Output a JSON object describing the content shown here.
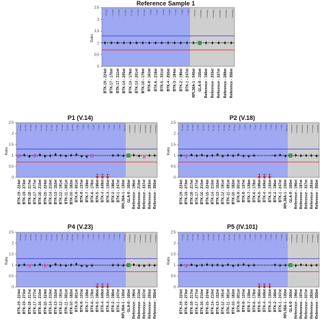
{
  "figure": {
    "y_axis_label": "Ratio",
    "y_ticks": [
      "2.5",
      "2",
      "1.5",
      "1",
      "0.5",
      "0"
    ]
  },
  "colors": {
    "blue_region": "#9fa8f2",
    "gray_region": "#cfcfcf",
    "baseline": "#111111",
    "upper_threshold": "#2b2bd9",
    "lower_threshold": "#e02020",
    "pink_marker": "#d84fc8",
    "green_marker": "#3aa04a",
    "red_marker": "#e02020"
  },
  "chart_data": [
    {
      "type": "scatter",
      "title": "Reference Sample 1",
      "ylabel": "Ratio",
      "ylim": [
        0,
        2.5
      ],
      "thresholds": {
        "upper": 1.3,
        "lower": 0.7
      },
      "categories": [
        "BTK-19 - 224nt",
        "BTK-17 - 170nt",
        "BTK-17 - 211nt",
        "BTK-14 - 205nt",
        "BTK-13 - 179nt",
        "BTK-13 - 201nt",
        "BTK-10 - 179nt",
        "BTK-8 - 161nt",
        "BTK-6 - 218nt",
        "BTK-5 - 331nt",
        "BTK-4 - 250nt",
        "BTK-3 - 184nt",
        "BTK-2 - 196nt",
        "BTK-1 - 247nt",
        "RPL36A-1 - 340nt",
        "GLA-8 - 155nt",
        "Reference - 196nt",
        "Reference - 203nt",
        "Reference - 337nt",
        "Reference - 288nt",
        "Reference - 356nt"
      ],
      "values": [
        1.0,
        1.0,
        1.0,
        1.0,
        1.0,
        1.0,
        1.0,
        1.0,
        1.0,
        1.0,
        1.0,
        1.0,
        1.0,
        1.0,
        1.0,
        1.0,
        1.0,
        1.0,
        1.0,
        1.0,
        1.0
      ],
      "blue_region_count": 14,
      "region_labels": [
        "BTK 19 ...",
        "BTK 17 ...",
        "BTK 17 ...",
        "BTK 14 ...",
        "BTK 13 ...",
        "BTK 13 ...",
        "BTK 10 ...",
        "BTK 8 ...",
        "BTK 6 ...",
        "BTK 5 ...",
        "BTK 4 ...",
        "BTK 3 ...",
        "BTK 2 ...",
        "BTK 1 ...",
        "RPL36A ...",
        "Reference ...",
        "Reference ...",
        "Reference ...",
        "Reference ...",
        "Reference ...",
        "Reference ..."
      ],
      "marker_kinds": [
        "",
        "",
        "",
        "",
        "",
        "",
        "",
        "",
        "",
        "",
        "",
        "",
        "",
        "",
        "",
        "green",
        "",
        "",
        "",
        "",
        ""
      ],
      "red_markers": []
    },
    {
      "type": "scatter",
      "title": "P1 (V.14)",
      "ylabel": "Ratio",
      "ylim": [
        0,
        2.5
      ],
      "thresholds": {
        "upper": 1.3,
        "lower": 0.7
      },
      "categories": [
        "BTK-19 - 224nt",
        "BTK-19 - 273nt",
        "BTK-18 - 217nt",
        "BTK-17 - 277nt",
        "BTK-16 - 210nt",
        "BTK-15 - 224nt",
        "BTK-14 - 210nt",
        "BTK-13 - 152nt",
        "BTK-12 - 191nt",
        "BTK-11 - 381nt",
        "BTK-10 - 182nt",
        "BTK-9 - 301nt",
        "BTK-8 - 137nt",
        "BTK-7 - 139nt",
        "BTK-6 - 178nt",
        "BTK-5 - 196nt",
        "BTK-4 - 349nt",
        "BTK-3 - 130nt",
        "BTK-2 - 196nt",
        "BTK-1 - 247nt",
        "RPL36A-1 - 130nt",
        "GLA-8 - 160nt",
        "Reference - 196nt",
        "Reference - 210nt",
        "Reference - 337nt",
        "Reference - 283nt",
        "Reference - 356nt"
      ],
      "values": [
        0.98,
        1.02,
        0.96,
        1.0,
        1.03,
        0.97,
        0.99,
        1.05,
        1.0,
        0.98,
        1.01,
        1.04,
        0.97,
        0.95,
        0.98,
        0.0,
        0.0,
        0.0,
        1.0,
        1.01,
        0.99,
        1.0,
        1.02,
        0.98,
        0.95,
        1.0,
        1.0
      ],
      "blue_region_count": 21,
      "region_labels": [
        "BTK 19 ...",
        "BTK 19 ...",
        "BTK 18 ...",
        "BTK 17 ...",
        "BTK 16 ...",
        "BTK 15 ...",
        "BTK 14 ...",
        "BTK 13 ...",
        "BTK 12 ...",
        "BTK 11 ...",
        "BTK 10 ...",
        "BTK 9 ...",
        "BTK 8 ...",
        "BTK 7 ...",
        "BTK 6 ...",
        "BTK 5 ...",
        "BTK 4 ...",
        "BTK 3 ...",
        "BTK 2 ...",
        "BTK 1 ...",
        "RPL36A ...",
        "Reference ...",
        "Reference ...",
        "Reference ...",
        "Reference ...",
        "Reference ...",
        "Reference ..."
      ],
      "marker_kinds": [
        "pink",
        "",
        "",
        "pink",
        "",
        "",
        "",
        "",
        "",
        "",
        "",
        "",
        "",
        "",
        "pink",
        "",
        "",
        "",
        "",
        "",
        "",
        "green",
        "",
        "",
        "pink",
        "",
        ""
      ],
      "red_markers": [
        15,
        16,
        17
      ]
    },
    {
      "type": "scatter",
      "title": "P2 (V.18)",
      "ylabel": "Ratio",
      "ylim": [
        0,
        2.5
      ],
      "thresholds": {
        "upper": 1.3,
        "lower": 0.7
      },
      "categories": [
        "BTK-19 - 224nt",
        "BTK-19 - 273nt",
        "BTK-18 - 217nt",
        "BTK-17 - 277nt",
        "BTK-16 - 210nt",
        "BTK-15 - 224nt",
        "BTK-14 - 210nt",
        "BTK-13 - 152nt",
        "BTK-12 - 191nt",
        "BTK-11 - 381nt",
        "BTK-10 - 182nt",
        "BTK-9 - 301nt",
        "BTK-8 - 137nt",
        "BTK-7 - 139nt",
        "BTK-6 - 178nt",
        "BTK-5 - 196nt",
        "BTK-4 - 349nt",
        "BTK-3 - 130nt",
        "BTK-2 - 196nt",
        "BTK-1 - 247nt",
        "RPL36A-1 - 130nt",
        "GLA-8 - 160nt",
        "Reference - 196nt",
        "Reference - 197nt",
        "Reference - 337nt",
        "Reference - 283nt",
        "Reference - 356nt"
      ],
      "values": [
        1.0,
        0.97,
        1.03,
        0.99,
        1.02,
        0.98,
        1.0,
        1.04,
        0.97,
        1.01,
        0.99,
        1.03,
        0.98,
        0.97,
        1.0,
        0.0,
        0.0,
        0.0,
        1.0,
        1.02,
        0.98,
        1.0,
        1.01,
        0.99,
        1.0,
        1.0,
        0.98
      ],
      "blue_region_count": 21,
      "region_labels": [
        "BTK 19 ...",
        "BTK 19 ...",
        "BTK 18 ...",
        "BTK 17 ...",
        "BTK 16 ...",
        "BTK 15 ...",
        "BTK 14 ...",
        "BTK 13 ...",
        "BTK 12 ...",
        "BTK 11 ...",
        "BTK 10 ...",
        "BTK 9 ...",
        "BTK 8 ...",
        "BTK 7 ...",
        "BTK 6 ...",
        "BTK 5 ...",
        "BTK 4 ...",
        "BTK 3 ...",
        "BTK 2 ...",
        "BTK 1 ...",
        "RPL36A ...",
        "Reference ...",
        "Reference ...",
        "Reference ...",
        "Reference ...",
        "Reference ...",
        "Reference ..."
      ],
      "marker_kinds": [
        "",
        "pink",
        "",
        "",
        "",
        "",
        "",
        "",
        "",
        "",
        "",
        "",
        "",
        "",
        "",
        "",
        "",
        "",
        "",
        "",
        "",
        "green",
        "",
        "",
        "",
        "",
        ""
      ],
      "red_markers": [
        15,
        16,
        17
      ]
    },
    {
      "type": "scatter",
      "title": "P4 (V.23)",
      "ylabel": "Ratio",
      "ylim": [
        0,
        2.5
      ],
      "thresholds": {
        "upper": 1.3,
        "lower": 0.7
      },
      "categories": [
        "BTK-19 - 224nt",
        "BTK-19 - 273nt",
        "BTK-18 - 217nt",
        "BTK-17 - 277nt",
        "BTK-16 - 210nt",
        "BTK-15 - 224nt",
        "BTK-14 - 210nt",
        "BTK-13 - 152nt",
        "BTK-12 - 191nt",
        "BTK-11 - 381nt",
        "BTK-10 - 182nt",
        "BTK-9 - 301nt",
        "BTK-8 - 137nt",
        "BTK-7 - 139nt",
        "BTK-6 - 178nt",
        "BTK-5 - 196nt",
        "BTK-4 - 349nt",
        "BTK-3 - 130nt",
        "BTK-2 - 196nt",
        "BTK-1 - 247nt",
        "RPL36A-1 - 130nt",
        "GLA-8 - 160nt",
        "Reference - 196nt",
        "Reference - 210nt",
        "Reference - 337nt",
        "Reference - 283nt",
        "Reference - 356nt"
      ],
      "values": [
        0.99,
        1.02,
        0.97,
        1.0,
        1.03,
        0.98,
        0.96,
        1.04,
        1.0,
        0.98,
        1.01,
        1.05,
        0.97,
        0.96,
        0.99,
        0.0,
        0.0,
        0.0,
        1.0,
        1.0,
        0.99,
        1.0,
        1.02,
        0.98,
        0.97,
        1.0,
        0.99
      ],
      "blue_region_count": 21,
      "region_labels": [
        "BTK 19 ...",
        "BTK 19 ...",
        "BTK 18 ...",
        "BTK 17 ...",
        "BTK 16 ...",
        "BTK 15 ...",
        "BTK 14 ...",
        "BTK 13 ...",
        "BTK 12 ...",
        "BTK 11 ...",
        "BTK 10 ...",
        "BTK 9 ...",
        "BTK 8 ...",
        "BTK 7 ...",
        "BTK 6 ...",
        "BTK 5 ...",
        "BTK 4 ...",
        "BTK 3 ...",
        "BTK 2 ...",
        "BTK 1 ...",
        "RPL36A ...",
        "Reference ...",
        "Reference ...",
        "Reference ...",
        "Reference ...",
        "Reference ...",
        "Reference ..."
      ],
      "marker_kinds": [
        "",
        "",
        "pink",
        "",
        "",
        "pink",
        "",
        "",
        "",
        "",
        "",
        "",
        "",
        "",
        "",
        "",
        "",
        "",
        "",
        "",
        "",
        "green",
        "",
        "",
        "",
        "",
        ""
      ],
      "red_markers": [
        15,
        16,
        17
      ]
    },
    {
      "type": "scatter",
      "title": "P5 (IV.101)",
      "ylabel": "Ratio",
      "ylim": [
        0,
        2.5
      ],
      "thresholds": {
        "upper": 1.3,
        "lower": 0.7
      },
      "categories": [
        "BTK-19 - 224nt",
        "BTK-19 - 273nt",
        "BTK-18 - 217nt",
        "BTK-17 - 277nt",
        "BTK-16 - 210nt",
        "BTK-15 - 224nt",
        "BTK-14 - 210nt",
        "BTK-13 - 152nt",
        "BTK-12 - 191nt",
        "BTK-11 - 381nt",
        "BTK-10 - 182nt",
        "BTK-9 - 301nt",
        "BTK-8 - 137nt",
        "BTK-7 - 139nt",
        "BTK-6 - 178nt",
        "BTK-5 - 196nt",
        "BTK-4 - 349nt",
        "BTK-3 - 130nt",
        "BTK-2 - 196nt",
        "BTK-1 - 247nt",
        "RPL36A-1 - 130nt",
        "GLA-8 - 160nt",
        "Reference - 196nt",
        "Reference - 197nt",
        "Reference - 337nt",
        "Reference - 283nt",
        "Reference - 356nt"
      ],
      "values": [
        1.0,
        0.98,
        1.02,
        0.97,
        1.0,
        1.03,
        0.99,
        1.01,
        0.98,
        1.02,
        0.97,
        1.0,
        1.03,
        0.98,
        1.0,
        0.0,
        0.0,
        0.0,
        1.01,
        0.99,
        1.0,
        1.0,
        0.98,
        1.02,
        1.0,
        0.99,
        1.0
      ],
      "blue_region_count": 21,
      "region_labels": [
        "BTK 19 ...",
        "BTK 19 ...",
        "BTK 18 ...",
        "BTK 17 ...",
        "BTK 16 ...",
        "BTK 15 ...",
        "BTK 14 ...",
        "BTK 13 ...",
        "BTK 12 ...",
        "BTK 11 ...",
        "BTK 10 ...",
        "BTK 9 ...",
        "BTK 8 ...",
        "BTK 7 ...",
        "BTK 6 ...",
        "BTK 5 ...",
        "BTK 4 ...",
        "BTK 3 ...",
        "BTK 2 ...",
        "BTK 1 ...",
        "RPL36A ...",
        "Reference ...",
        "Reference ...",
        "Reference ...",
        "Reference ...",
        "Reference ...",
        "Reference ..."
      ],
      "marker_kinds": [
        "",
        "pink",
        "",
        "",
        "",
        "",
        "",
        "",
        "",
        "",
        "",
        "",
        "",
        "",
        "",
        "",
        "",
        "",
        "",
        "",
        "",
        "green",
        "",
        "",
        "",
        "",
        ""
      ],
      "red_markers": [
        15,
        16,
        17
      ]
    }
  ]
}
